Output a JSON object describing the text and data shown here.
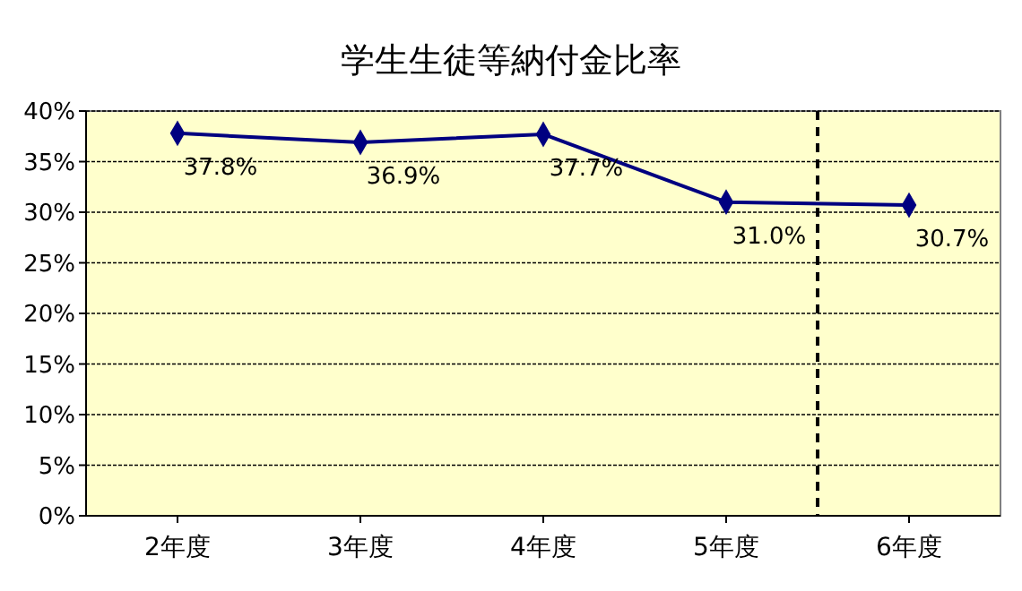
{
  "chart_data": {
    "type": "line",
    "title": "学生生徒等納付金比率",
    "x": [
      2,
      3,
      4,
      5,
      6
    ],
    "series": [
      {
        "color": "#000080",
        "values": [
          37.8,
          36.9,
          37.7,
          31.0,
          30.7
        ],
        "value_labels": [
          "37.8%",
          "36.9%",
          "37.7%",
          "31.0%",
          "30.7%"
        ]
      }
    ],
    "xlim": [
      1.5,
      6.5
    ],
    "xticks": [
      {
        "value": 2,
        "label": "2年度"
      },
      {
        "value": 3,
        "label": "3年度"
      },
      {
        "value": 4,
        "label": "4年度"
      },
      {
        "value": 5,
        "label": "5年度"
      },
      {
        "value": 6,
        "label": "6年度"
      }
    ],
    "ylim": [
      0,
      40
    ],
    "yticks": [
      {
        "value": 0,
        "label": "0%"
      },
      {
        "value": 5,
        "label": "5%"
      },
      {
        "value": 10,
        "label": "10%"
      },
      {
        "value": 15,
        "label": "15%"
      },
      {
        "value": 20,
        "label": "20%"
      },
      {
        "value": 25,
        "label": "25%"
      },
      {
        "value": 30,
        "label": "30%"
      },
      {
        "value": 35,
        "label": "35%"
      },
      {
        "value": 40,
        "label": "40%"
      }
    ],
    "grid": "y",
    "marker": "diamond",
    "line_style": "solid",
    "ref_lines": [
      {
        "axis": "x",
        "value": 5.5,
        "color": "#000000",
        "line_style": "dashed"
      }
    ]
  }
}
